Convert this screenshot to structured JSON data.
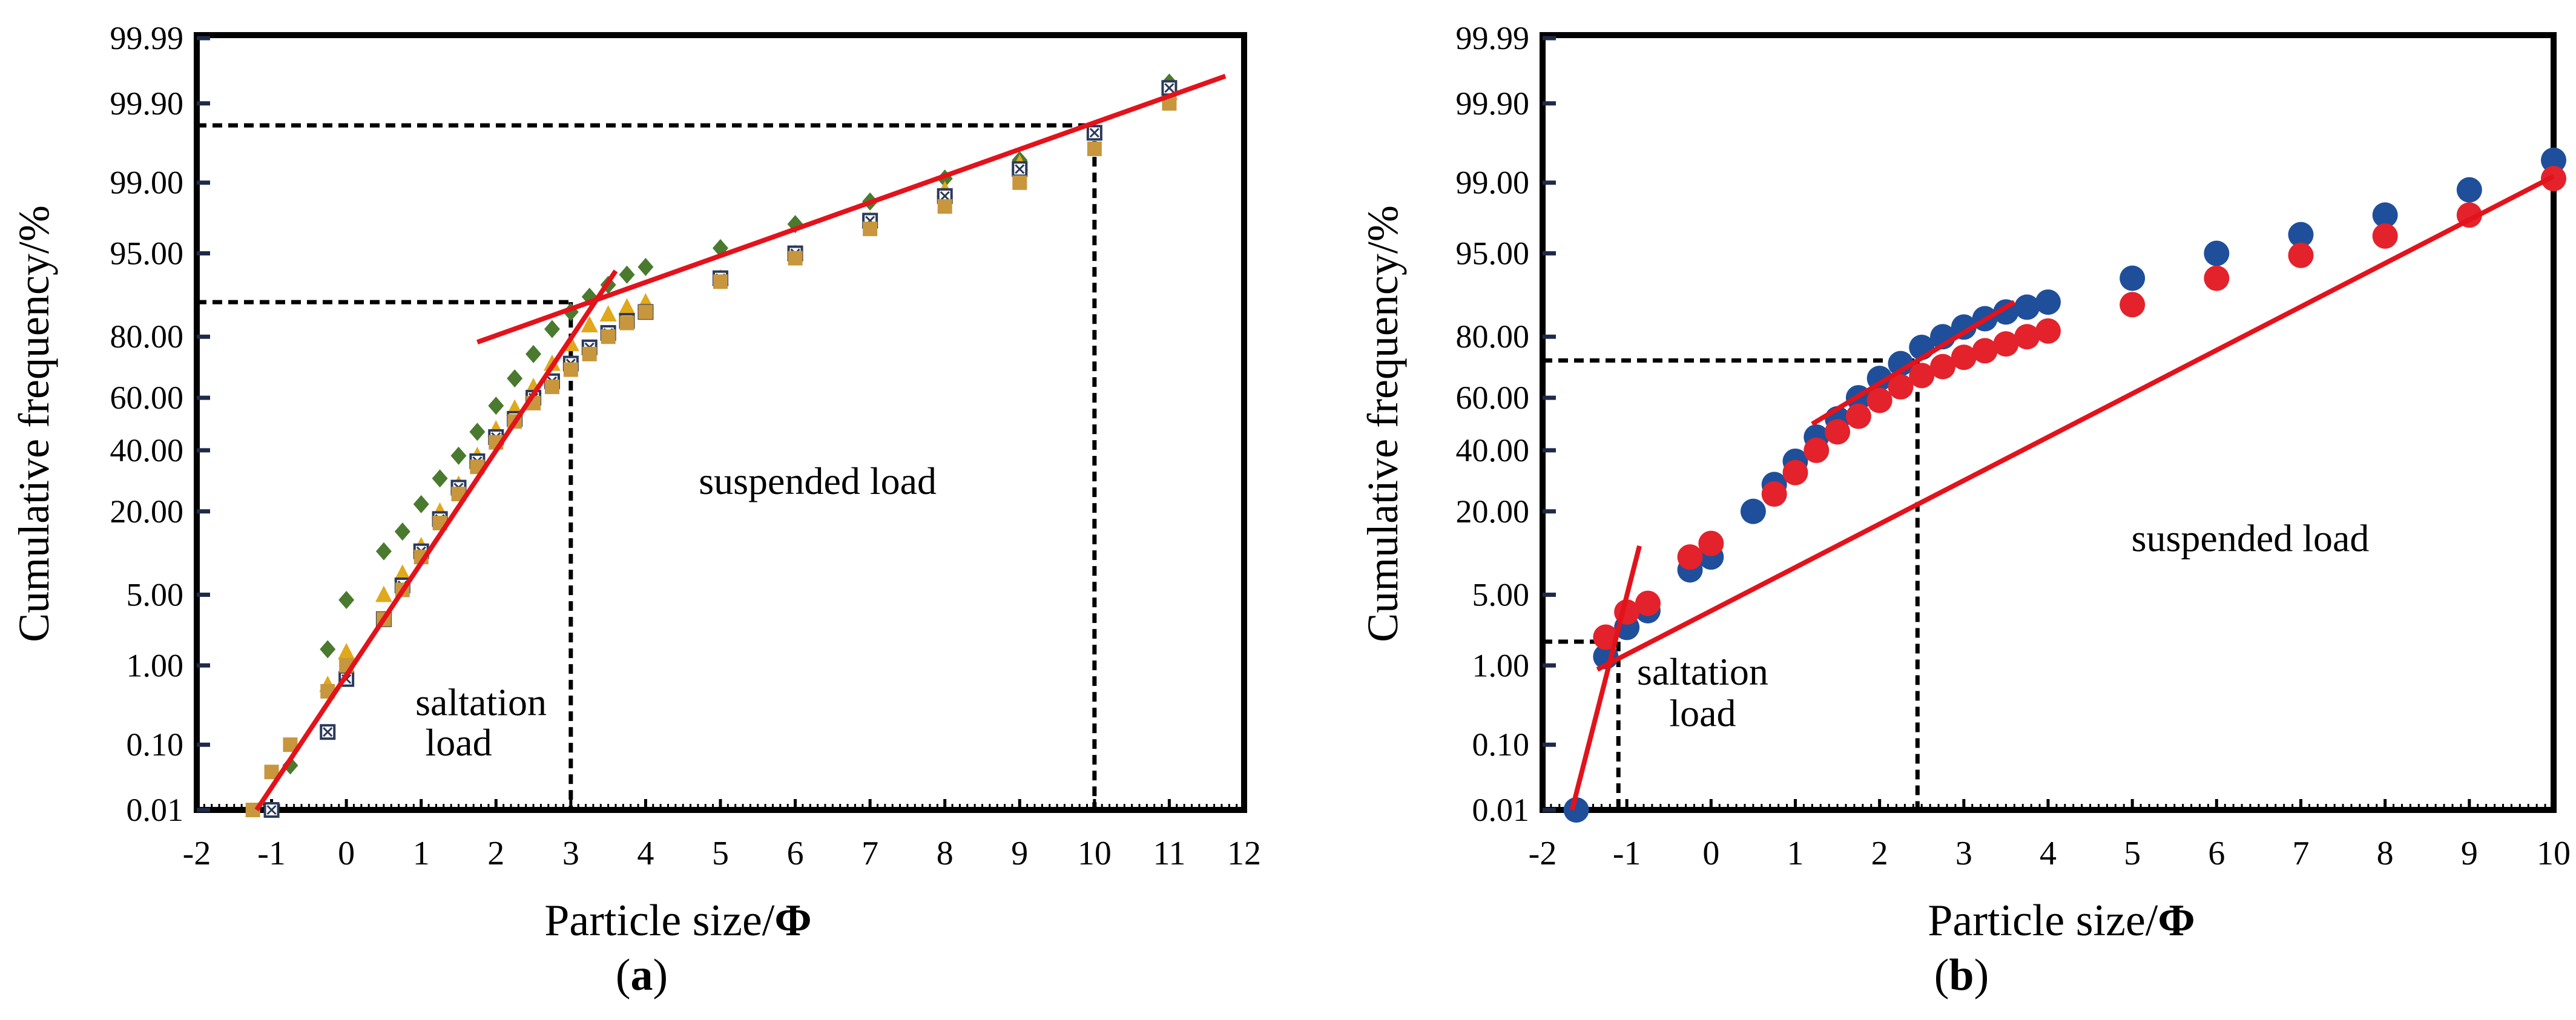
{
  "chart_data": [
    {
      "id": "a",
      "type": "scatter",
      "panel_label": "(a)",
      "panel_label_parts": [
        "(",
        "a",
        ")"
      ],
      "xlabel": "Particle size/",
      "xlabel_symbol": "Φ",
      "ylabel": "Cumulative frequency/%",
      "xlim": [
        -2,
        12
      ],
      "x_ticks": [
        "-2",
        "-1",
        "0",
        "1",
        "2",
        "3",
        "4",
        "5",
        "6",
        "7",
        "8",
        "9",
        "10",
        "11",
        "12"
      ],
      "y_ticks": [
        "0.01",
        "0.10",
        "1.00",
        "5.00",
        "20.00",
        "40.00",
        "60.00",
        "80.00",
        "95.00",
        "99.00",
        "99.90",
        "99.99"
      ],
      "annotations": [
        {
          "text": "suspended load",
          "x": 6.3,
          "y": 25
        },
        {
          "text": "saltation",
          "x": 1.8,
          "y": 0.25
        },
        {
          "text": "load",
          "x": 1.5,
          "y": 0.07
        }
      ],
      "series": [
        {
          "name": "diamond",
          "marker": "diamond",
          "color": "#4a7a2e",
          "points": [
            [
              -0.75,
              0.05
            ],
            [
              -0.25,
              1.5
            ],
            [
              0,
              4.5
            ],
            [
              0.5,
              11
            ],
            [
              0.75,
              15
            ],
            [
              1,
              22
            ],
            [
              1.25,
              30
            ],
            [
              1.5,
              38
            ],
            [
              1.75,
              47
            ],
            [
              2,
              57
            ],
            [
              2.25,
              67
            ],
            [
              2.5,
              75
            ],
            [
              2.75,
              82
            ],
            [
              3,
              86
            ],
            [
              3.25,
              89
            ],
            [
              3.5,
              91
            ],
            [
              3.75,
              92.5
            ],
            [
              4,
              93.5
            ],
            [
              5,
              95.5
            ],
            [
              6,
              97.3
            ],
            [
              7,
              98.4
            ],
            [
              8,
              99.1
            ],
            [
              9,
              99.45
            ],
            [
              11,
              99.95
            ]
          ]
        },
        {
          "name": "triangle",
          "marker": "triangle",
          "color": "#e0a81c",
          "points": [
            [
              -0.25,
              0.6
            ],
            [
              0,
              1.4
            ],
            [
              0.5,
              5
            ],
            [
              0.75,
              7.5
            ],
            [
              1,
              12
            ],
            [
              1.25,
              20
            ],
            [
              1.5,
              28
            ],
            [
              1.75,
              38
            ],
            [
              2,
              48
            ],
            [
              2.25,
              56
            ],
            [
              2.5,
              64
            ],
            [
              2.75,
              72
            ],
            [
              3,
              78
            ],
            [
              3.25,
              83
            ],
            [
              3.5,
              85.5
            ],
            [
              3.75,
              87
            ],
            [
              4,
              88
            ],
            [
              5,
              92
            ],
            [
              6,
              95
            ],
            [
              7,
              97.5
            ],
            [
              8,
              98.8
            ],
            [
              9,
              99.4
            ],
            [
              11,
              99.93
            ]
          ]
        },
        {
          "name": "square-cross",
          "marker": "squarex",
          "color": "#2b3a5a",
          "points": [
            [
              -1,
              0.01
            ],
            [
              -0.25,
              0.15
            ],
            [
              0,
              0.7
            ],
            [
              0.5,
              3
            ],
            [
              0.75,
              6
            ],
            [
              1,
              11
            ],
            [
              1.25,
              18
            ],
            [
              1.5,
              27
            ],
            [
              1.75,
              36
            ],
            [
              2,
              45
            ],
            [
              2.25,
              52
            ],
            [
              2.5,
              60
            ],
            [
              2.75,
              66
            ],
            [
              3,
              72
            ],
            [
              3.25,
              77
            ],
            [
              3.5,
              81
            ],
            [
              3.75,
              84
            ],
            [
              4,
              86
            ],
            [
              5,
              92
            ],
            [
              6,
              95
            ],
            [
              7,
              97.5
            ],
            [
              8,
              98.6
            ],
            [
              9,
              99.3
            ],
            [
              10,
              99.75
            ],
            [
              11,
              99.94
            ]
          ]
        },
        {
          "name": "square",
          "marker": "square",
          "color": "#c8963c",
          "points": [
            [
              -1.25,
              0.01
            ],
            [
              -1,
              0.04
            ],
            [
              -0.75,
              0.1
            ],
            [
              -0.25,
              0.5
            ],
            [
              0,
              1
            ],
            [
              0.5,
              3
            ],
            [
              0.75,
              5.5
            ],
            [
              1,
              10
            ],
            [
              1.25,
              17
            ],
            [
              1.5,
              25
            ],
            [
              1.75,
              34
            ],
            [
              2,
              43
            ],
            [
              2.25,
              51
            ],
            [
              2.5,
              58
            ],
            [
              2.75,
              64
            ],
            [
              3,
              70
            ],
            [
              3.25,
              75
            ],
            [
              3.5,
              80
            ],
            [
              3.75,
              83.5
            ],
            [
              4,
              86
            ],
            [
              5,
              91.5
            ],
            [
              6,
              94.5
            ],
            [
              7,
              97
            ],
            [
              8,
              98.2
            ],
            [
              9,
              99
            ],
            [
              10,
              99.6
            ],
            [
              11,
              99.9
            ]
          ]
        }
      ],
      "fit_lines": [
        {
          "x1": -1.2,
          "y1": 0.01,
          "x2": 3.6,
          "y2": 93
        },
        {
          "x1": 1.75,
          "y1": 78.5,
          "x2": 11.75,
          "y2": 99.96
        }
      ],
      "ref_lines": [
        {
          "x": 3,
          "y": 88
        },
        {
          "x": 10,
          "y": 99.8
        }
      ]
    },
    {
      "id": "b",
      "type": "scatter",
      "panel_label": "(b)",
      "panel_label_parts": [
        "(",
        "b",
        ")"
      ],
      "xlabel": "Particle size/",
      "xlabel_symbol": "Φ",
      "ylabel": "Cumulative frequency/%",
      "xlim": [
        -2,
        10
      ],
      "x_ticks": [
        "-2",
        "-1",
        "0",
        "1",
        "2",
        "3",
        "4",
        "5",
        "6",
        "7",
        "8",
        "9",
        "10"
      ],
      "y_ticks": [
        "0.01",
        "0.10",
        "1.00",
        "5.00",
        "20.00",
        "40.00",
        "60.00",
        "80.00",
        "95.00",
        "99.00",
        "99.90",
        "99.99"
      ],
      "annotations": [
        {
          "text": "suspended load",
          "x": 6.4,
          "y": 11
        },
        {
          "text": "saltation",
          "x": -0.1,
          "y": 0.6
        },
        {
          "text": "load",
          "x": -0.1,
          "y": 0.18
        }
      ],
      "series": [
        {
          "name": "blue",
          "marker": "circle",
          "color": "#1f4f9a",
          "points": [
            [
              -1.6,
              0.01
            ],
            [
              -1.25,
              1.25
            ],
            [
              -1,
              2.5
            ],
            [
              -0.75,
              3.6
            ],
            [
              -0.25,
              8
            ],
            [
              0,
              10
            ],
            [
              0.5,
              20
            ],
            [
              0.75,
              28
            ],
            [
              1,
              36
            ],
            [
              1.25,
              45
            ],
            [
              1.5,
              52
            ],
            [
              1.75,
              60
            ],
            [
              2,
              67
            ],
            [
              2.25,
              72
            ],
            [
              2.5,
              77
            ],
            [
              2.75,
              80
            ],
            [
              3,
              82.5
            ],
            [
              3.25,
              84.5
            ],
            [
              3.5,
              86
            ],
            [
              3.75,
              87
            ],
            [
              4,
              88
            ],
            [
              5,
              92
            ],
            [
              6,
              95
            ],
            [
              7,
              96.6
            ],
            [
              8,
              97.8
            ],
            [
              9,
              98.8
            ],
            [
              10,
              99.45
            ]
          ]
        },
        {
          "name": "red",
          "marker": "circle",
          "color": "#e3222b",
          "points": [
            [
              -1.25,
              2
            ],
            [
              -1,
              3.5
            ],
            [
              -0.75,
              4.2
            ],
            [
              -0.25,
              10
            ],
            [
              0,
              12.5
            ],
            [
              0.75,
              25
            ],
            [
              1,
              32
            ],
            [
              1.25,
              40
            ],
            [
              1.5,
              47
            ],
            [
              1.75,
              53
            ],
            [
              2,
              59
            ],
            [
              2.25,
              64
            ],
            [
              2.5,
              68
            ],
            [
              2.75,
              71
            ],
            [
              3,
              74
            ],
            [
              3.25,
              76
            ],
            [
              3.5,
              78
            ],
            [
              3.75,
              80
            ],
            [
              4,
              81.5
            ],
            [
              5,
              87.5
            ],
            [
              6,
              92
            ],
            [
              7,
              94.8
            ],
            [
              8,
              96.5
            ],
            [
              9,
              97.8
            ],
            [
              10,
              99.1
            ]
          ]
        }
      ],
      "fit_lines": [
        {
          "x1": -1.65,
          "y1": 0.01,
          "x2": -0.85,
          "y2": 12
        },
        {
          "x1": -1.35,
          "y1": 0.9,
          "x2": 10,
          "y2": 99.15
        },
        {
          "x1": 1.2,
          "y1": 50,
          "x2": 3.6,
          "y2": 88
        }
      ],
      "ref_lines": [
        {
          "x": -1.1,
          "y": 1.8
        },
        {
          "x": 2.45,
          "y": 73
        }
      ]
    }
  ]
}
